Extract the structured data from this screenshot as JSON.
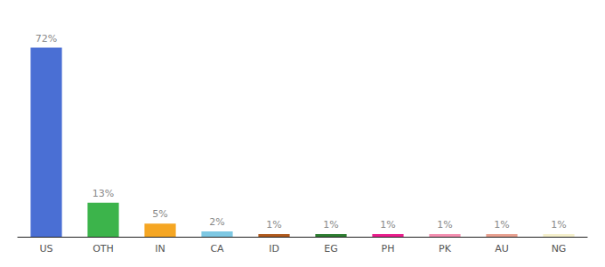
{
  "chart_data": {
    "type": "bar",
    "categories": [
      "US",
      "OTH",
      "IN",
      "CA",
      "ID",
      "EG",
      "PH",
      "PK",
      "AU",
      "NG"
    ],
    "values": [
      72,
      13,
      5,
      2,
      1,
      1,
      1,
      1,
      1,
      1
    ],
    "value_labels": [
      "72%",
      "13%",
      "5%",
      "2%",
      "1%",
      "1%",
      "1%",
      "1%",
      "1%",
      "1%"
    ],
    "colors": [
      "#4a6fd4",
      "#3cb44b",
      "#f5a623",
      "#7ec8e3",
      "#b05a1e",
      "#2e7d32",
      "#e91e8c",
      "#f48fb1",
      "#e8a090",
      "#f5f0cc"
    ],
    "ylim": [
      0,
      80
    ],
    "data_labels": true,
    "grid": false,
    "tick_labels": "x"
  }
}
